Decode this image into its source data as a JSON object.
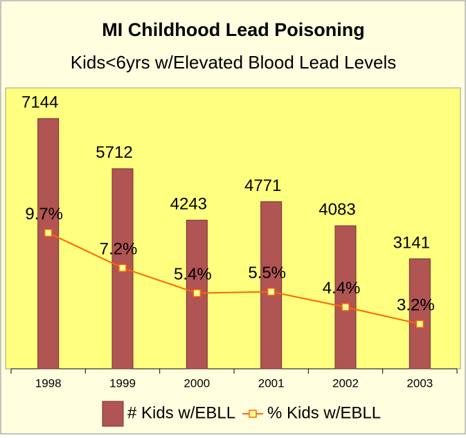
{
  "chart_data": {
    "type": "bar",
    "title": "MI Childhood Lead Poisoning",
    "subtitle": "Kids<6yrs w/Elevated Blood Lead Levels",
    "categories": [
      "1998",
      "1999",
      "2000",
      "2001",
      "2002",
      "2003"
    ],
    "series": [
      {
        "name": "# Kids w/EBLL",
        "type": "bar",
        "color": "#b05454",
        "values": [
          7144,
          5712,
          4243,
          4771,
          4083,
          3141
        ]
      },
      {
        "name": "% Kids w/EBLL",
        "type": "line",
        "axis": "y2",
        "color": "#ff6600",
        "values": [
          9.7,
          7.2,
          5.4,
          5.5,
          4.4,
          3.2
        ],
        "value_labels": [
          "9.7%",
          "7.2%",
          "5.4%",
          "5.5%",
          "4.4%",
          "3.2%"
        ]
      }
    ],
    "ylim": [
      0,
      8000
    ],
    "y2lim": [
      0,
      20
    ],
    "legend": "bottom"
  }
}
